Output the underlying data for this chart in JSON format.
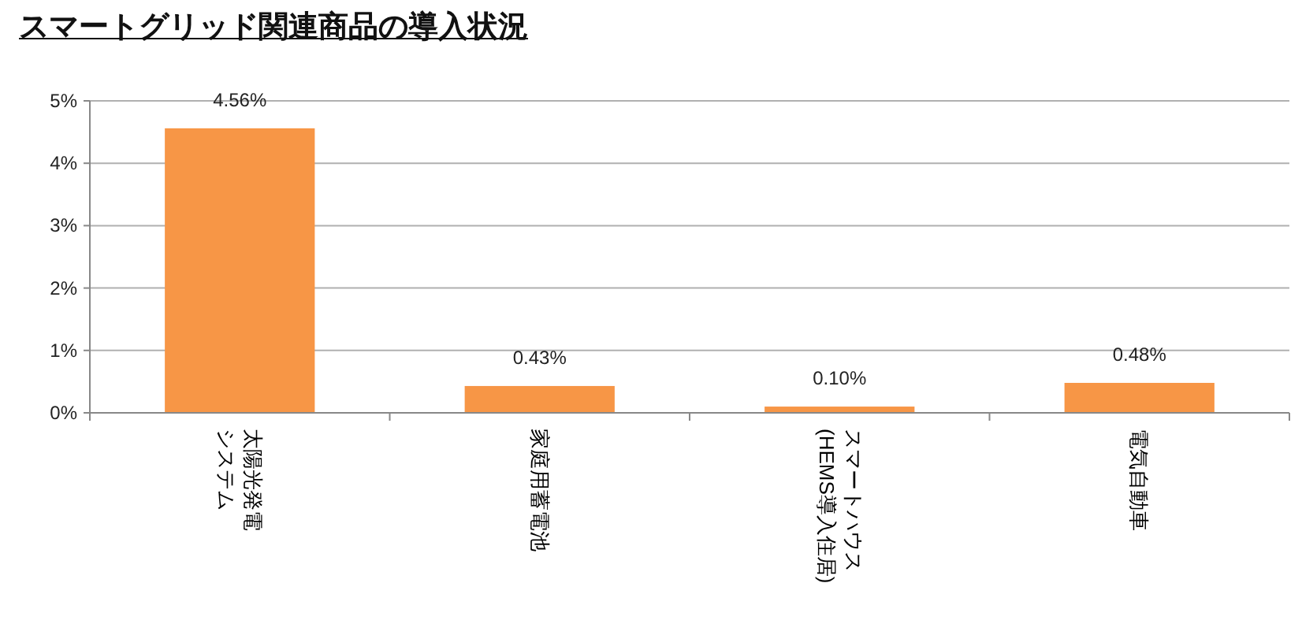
{
  "chart_data": {
    "type": "bar",
    "title": "スマートグリッド関連商品の導入状況",
    "categories": [
      "太陽光発電システム",
      "家庭用蓄電池",
      "スマートハウス(HEMS導入住居)",
      "電気自動車"
    ],
    "values": [
      4.56,
      0.43,
      0.1,
      0.48
    ],
    "value_labels": [
      "4.56%",
      "0.43%",
      "0.10%",
      "0.48%"
    ],
    "color": "#f79646",
    "ylim": [
      0,
      5
    ],
    "yticks": [
      {
        "value": 0,
        "label": "0%"
      },
      {
        "value": 1,
        "label": "1%"
      },
      {
        "value": 2,
        "label": "2%"
      },
      {
        "value": 3,
        "label": "3%"
      },
      {
        "value": 4,
        "label": "4%"
      },
      {
        "value": 5,
        "label": "5%"
      }
    ],
    "grid": "y"
  }
}
